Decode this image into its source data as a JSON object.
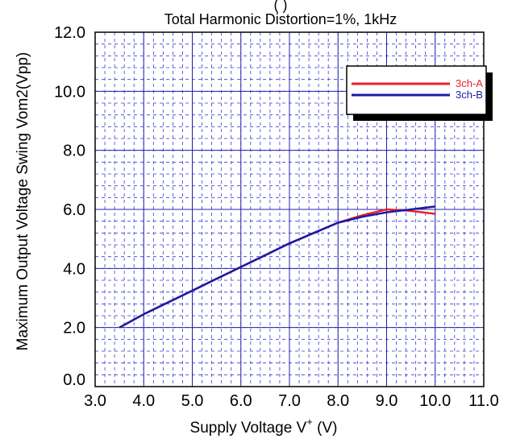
{
  "chart_data": {
    "type": "line",
    "title_partial": "(                    )",
    "subtitle": "Total Harmonic Distortion=1%, 1kHz",
    "xlabel": "Supply Voltage  V",
    "xlabel_superscript": "+",
    "xlabel_unit": " (V)",
    "ylabel": "Maximum Output Voltage Swing  Vom2(Vpp)",
    "xlim": [
      3.0,
      11.0
    ],
    "ylim": [
      0.0,
      12.0
    ],
    "x_ticks": [
      "3.0",
      "4.0",
      "5.0",
      "6.0",
      "7.0",
      "8.0",
      "9.0",
      "10.0",
      "11.0"
    ],
    "y_ticks": [
      "0.0",
      "2.0",
      "4.0",
      "6.0",
      "8.0",
      "10.0",
      "12.0"
    ],
    "grid": true,
    "legend_position": "top-right",
    "series": [
      {
        "name": "3ch-A",
        "color": "#e8202a",
        "x": [
          3.5,
          4.0,
          4.5,
          5.0,
          5.5,
          6.0,
          6.5,
          7.0,
          7.5,
          8.0,
          8.5,
          9.0,
          9.5,
          10.0
        ],
        "y": [
          2.0,
          2.45,
          2.85,
          3.25,
          3.65,
          4.05,
          4.45,
          4.85,
          5.2,
          5.55,
          5.8,
          6.0,
          5.95,
          5.85
        ]
      },
      {
        "name": "3ch-B",
        "color": "#1a1aa6",
        "x": [
          3.5,
          4.0,
          4.5,
          5.0,
          5.5,
          6.0,
          6.5,
          7.0,
          7.5,
          8.0,
          8.5,
          9.0,
          9.5,
          10.0
        ],
        "y": [
          2.0,
          2.45,
          2.85,
          3.25,
          3.65,
          4.05,
          4.45,
          4.85,
          5.2,
          5.55,
          5.75,
          5.9,
          6.0,
          6.1
        ]
      }
    ]
  }
}
